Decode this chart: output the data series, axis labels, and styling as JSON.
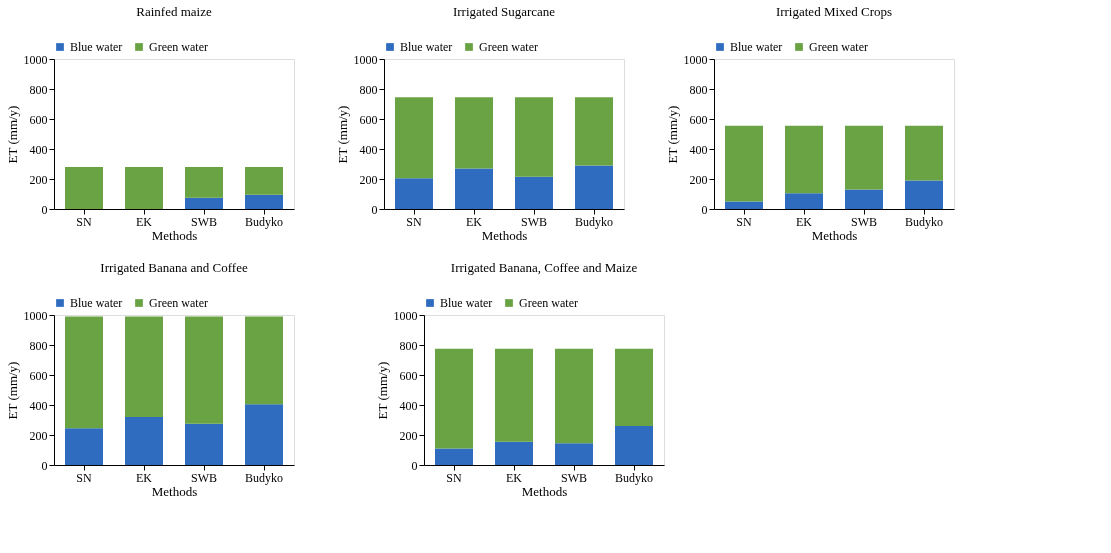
{
  "chart_data": [
    {
      "type": "bar",
      "stacked": true,
      "title": "Rainfed maize",
      "xlabel": "Methods",
      "ylabel": "ET (mm/y)",
      "categories": [
        "SN",
        "EK",
        "SWB",
        "Budyko"
      ],
      "ylim": [
        0,
        1000
      ],
      "yticks": [
        0,
        200,
        400,
        600,
        800,
        1000
      ],
      "grid": false,
      "legend": "top",
      "series": [
        {
          "name": "Blue water",
          "color": "#2f6cc0",
          "values": [
            0,
            0,
            75,
            95
          ]
        },
        {
          "name": "Green water",
          "color": "#6aa343",
          "values": [
            280,
            280,
            205,
            185
          ]
        }
      ]
    },
    {
      "type": "bar",
      "stacked": true,
      "title": "Irrigated Sugarcane",
      "xlabel": "Methods",
      "ylabel": "ET (mm/y)",
      "categories": [
        "SN",
        "EK",
        "SWB",
        "Budyko"
      ],
      "ylim": [
        0,
        1000
      ],
      "yticks": [
        0,
        200,
        400,
        600,
        800,
        1000
      ],
      "grid": false,
      "legend": "top",
      "series": [
        {
          "name": "Blue water",
          "color": "#2f6cc0",
          "values": [
            205,
            270,
            215,
            290
          ]
        },
        {
          "name": "Green water",
          "color": "#6aa343",
          "values": [
            540,
            475,
            530,
            455
          ]
        }
      ]
    },
    {
      "type": "bar",
      "stacked": true,
      "title": "Irrigated Mixed Crops",
      "xlabel": "Methods",
      "ylabel": "ET (mm/y)",
      "categories": [
        "SN",
        "EK",
        "SWB",
        "Budyko"
      ],
      "ylim": [
        0,
        1000
      ],
      "yticks": [
        0,
        200,
        400,
        600,
        800,
        1000
      ],
      "grid": false,
      "legend": "top",
      "series": [
        {
          "name": "Blue water",
          "color": "#2f6cc0",
          "values": [
            50,
            105,
            130,
            190
          ]
        },
        {
          "name": "Green water",
          "color": "#6aa343",
          "values": [
            505,
            450,
            425,
            365
          ]
        }
      ]
    },
    {
      "type": "bar",
      "stacked": true,
      "title": "Irrigated Banana and Coffee",
      "xlabel": "Methods",
      "ylabel": "ET (mm/y)",
      "categories": [
        "SN",
        "EK",
        "SWB",
        "Budyko"
      ],
      "ylim": [
        0,
        1000
      ],
      "yticks": [
        0,
        200,
        400,
        600,
        800,
        1000
      ],
      "grid": false,
      "legend": "top",
      "series": [
        {
          "name": "Blue water",
          "color": "#2f6cc0",
          "values": [
            245,
            320,
            275,
            405
          ]
        },
        {
          "name": "Green water",
          "color": "#6aa343",
          "values": [
            745,
            670,
            715,
            585
          ]
        }
      ]
    },
    {
      "type": "bar",
      "stacked": true,
      "title": "Irrigated Banana, Coffee and Maize",
      "xlabel": "Methods",
      "ylabel": "ET (mm/y)",
      "categories": [
        "SN",
        "EK",
        "SWB",
        "Budyko"
      ],
      "ylim": [
        0,
        1000
      ],
      "yticks": [
        0,
        200,
        400,
        600,
        800,
        1000
      ],
      "grid": false,
      "legend": "top",
      "series": [
        {
          "name": "Blue water",
          "color": "#2f6cc0",
          "values": [
            110,
            155,
            145,
            260
          ]
        },
        {
          "name": "Green water",
          "color": "#6aa343",
          "values": [
            665,
            620,
            630,
            515
          ]
        }
      ]
    }
  ]
}
